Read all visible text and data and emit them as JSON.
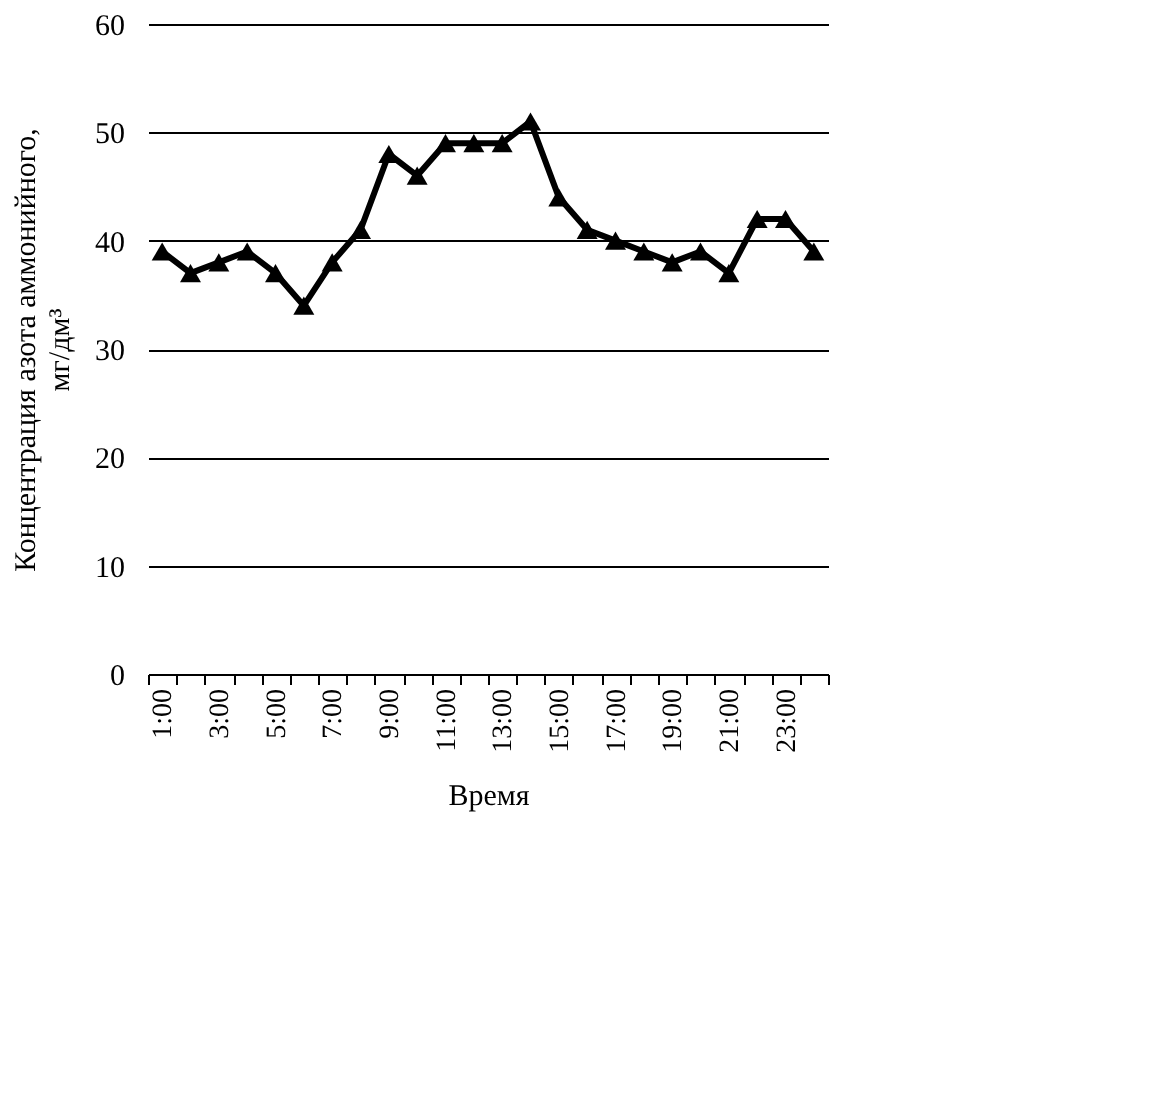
{
  "chart_data": {
    "type": "line",
    "xlabel": "Время",
    "ylabel": "Концентрация азота аммонийного, мг/дм³",
    "categories": [
      "1:00",
      null,
      "3:00",
      null,
      "5:00",
      null,
      "7:00",
      null,
      "9:00",
      null,
      "11:00",
      null,
      "13:00",
      null,
      "15:00",
      null,
      "17:00",
      null,
      "19:00",
      null,
      "21:00",
      null,
      "23:00",
      null
    ],
    "series": [
      {
        "color": "#000000",
        "values": [
          39,
          37,
          38,
          39,
          37,
          34,
          38,
          41,
          48,
          46,
          49,
          49,
          49,
          51,
          44,
          41,
          40,
          39,
          38,
          39,
          37,
          42,
          42,
          39
        ]
      }
    ],
    "ylim": [
      0,
      60
    ],
    "yticks": [
      0,
      10,
      20,
      30,
      40,
      50,
      60
    ],
    "grid": "y",
    "marker": "triangle",
    "line_style": "solid"
  }
}
